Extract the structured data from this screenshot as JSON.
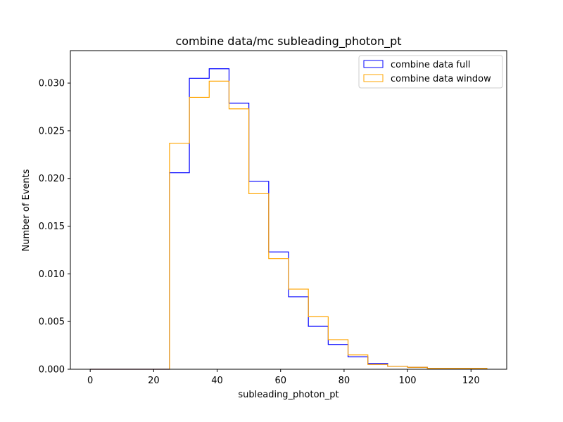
{
  "chart_data": {
    "type": "histogram-step",
    "title": "combine data/mc subleading_photon_pt",
    "xlabel": "subleading_photon_pt",
    "ylabel": "Number of Events",
    "xlim": [
      -6.25,
      131.25
    ],
    "ylim": [
      0,
      0.0334
    ],
    "xticks": [
      0,
      20,
      40,
      60,
      80,
      100,
      120
    ],
    "yticks": [
      0.0,
      0.005,
      0.01,
      0.015,
      0.02,
      0.025,
      0.03
    ],
    "ytick_labels": [
      "0.000",
      "0.005",
      "0.010",
      "0.015",
      "0.020",
      "0.025",
      "0.030"
    ],
    "grid": false,
    "legend_position": "top-right",
    "bin_edges": [
      0,
      6.25,
      12.5,
      18.75,
      25,
      31.25,
      37.5,
      43.75,
      50,
      56.25,
      62.5,
      68.75,
      75,
      81.25,
      87.5,
      93.75,
      100,
      106.25,
      112.5,
      118.75,
      125
    ],
    "series": [
      {
        "name": "combine data full",
        "color": "#0000ff",
        "values": [
          0,
          0,
          0,
          0,
          0.0206,
          0.0305,
          0.0315,
          0.0279,
          0.0197,
          0.0123,
          0.0076,
          0.0045,
          0.0026,
          0.0013,
          0.0006,
          0.0003,
          0.0002,
          0.0001,
          0.0001,
          0.0001
        ]
      },
      {
        "name": "combine data window",
        "color": "#ffa500",
        "values": [
          0,
          0,
          0,
          0,
          0.0237,
          0.0285,
          0.0302,
          0.0273,
          0.0184,
          0.0116,
          0.0084,
          0.0055,
          0.0031,
          0.0015,
          0.0005,
          0.0003,
          0.0002,
          0.0001,
          0.0001,
          0.0001
        ]
      }
    ]
  }
}
